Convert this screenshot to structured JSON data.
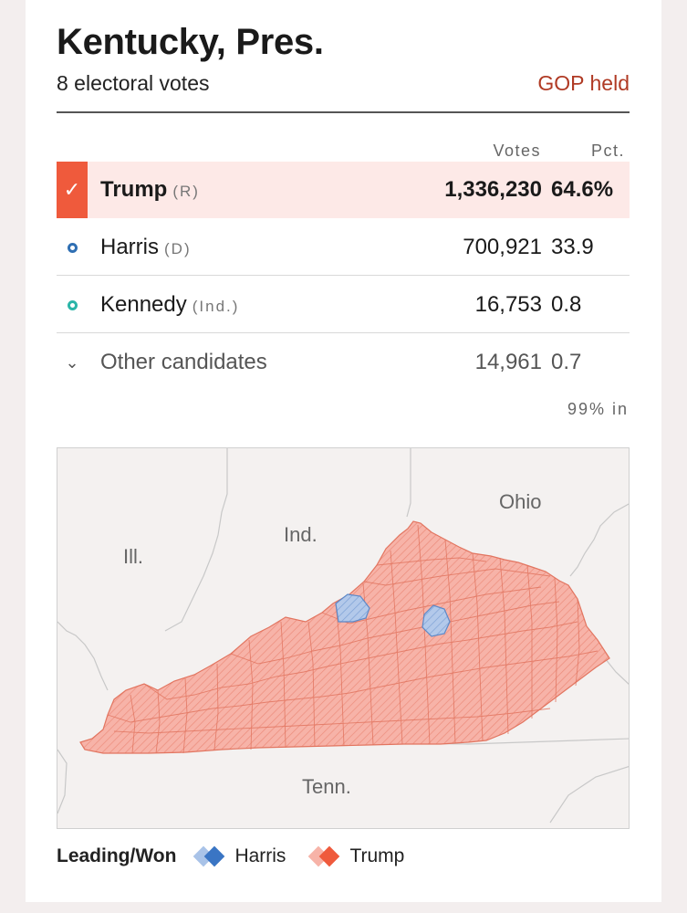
{
  "race": {
    "title": "Kentucky, Pres.",
    "subtitle": "8 electoral votes",
    "status": "GOP held",
    "columns": {
      "votes": "Votes",
      "pct": "Pct."
    },
    "reporting": "99% in"
  },
  "candidates": [
    {
      "name": "Trump",
      "party": "(R)",
      "votes": "1,336,230",
      "pct": "64.6%",
      "color": "#ef5a3c"
    },
    {
      "name": "Harris",
      "party": "(D)",
      "votes": "700,921",
      "pct": "33.9",
      "color": "#2f6fb3"
    },
    {
      "name": "Kennedy",
      "party": "(Ind.)",
      "votes": "16,753",
      "pct": "0.8",
      "color": "#2bb5a8"
    },
    {
      "name": "Other candidates",
      "votes": "14,961",
      "pct": "0.7"
    }
  ],
  "map": {
    "labels": {
      "ill": "Ill.",
      "ind": "Ind.",
      "ohio": "Ohio",
      "tenn": "Tenn."
    },
    "colors": {
      "trump_fill": "#f7b3a8",
      "trump_line": "#e4705c",
      "harris_fill": "#a9c3e8",
      "harris_line": "#5d89c8"
    }
  },
  "legend": {
    "label": "Leading/Won",
    "items": [
      {
        "name": "Harris",
        "color_light": "#a9c3e8",
        "color_dark": "#3a75c4"
      },
      {
        "name": "Trump",
        "color_light": "#f7b3a8",
        "color_dark": "#ef5a3c"
      }
    ]
  }
}
